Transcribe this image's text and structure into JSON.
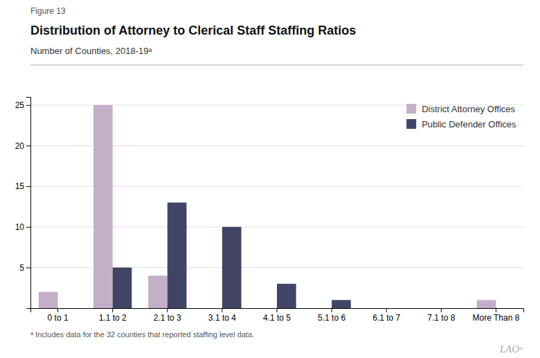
{
  "chart_data": {
    "type": "bar",
    "title": "Distribution of Attorney to Clerical Staff Staffing Ratios",
    "subtitle": "Number of Counties, 2018-19ᵃ",
    "annotations": [
      "Figure 13",
      "ᵃ Includes data for the 32 counties that reported staffing level data.",
      "LAOᵃ"
    ],
    "categories": [
      "0 to 1",
      "1.1 to 2",
      "2.1 to 3",
      "3.1 to 4",
      "4.1 to 5",
      "5.1 to 6",
      "6.1 to 7",
      "7.1 to 8",
      "More Than 8"
    ],
    "series": [
      {
        "name": "District Attorney Offices",
        "color": "#c4afc9",
        "values": [
          2,
          25,
          4,
          0,
          0,
          0,
          0,
          0,
          1
        ]
      },
      {
        "name": "Public Defender Offices",
        "color": "#414565",
        "values": [
          0,
          5,
          13,
          10,
          3,
          1,
          0,
          0,
          0
        ]
      }
    ],
    "ylim": [
      0,
      26
    ],
    "yticks": [
      5,
      10,
      15,
      20,
      25
    ],
    "grid": true,
    "legend": "upper right"
  }
}
